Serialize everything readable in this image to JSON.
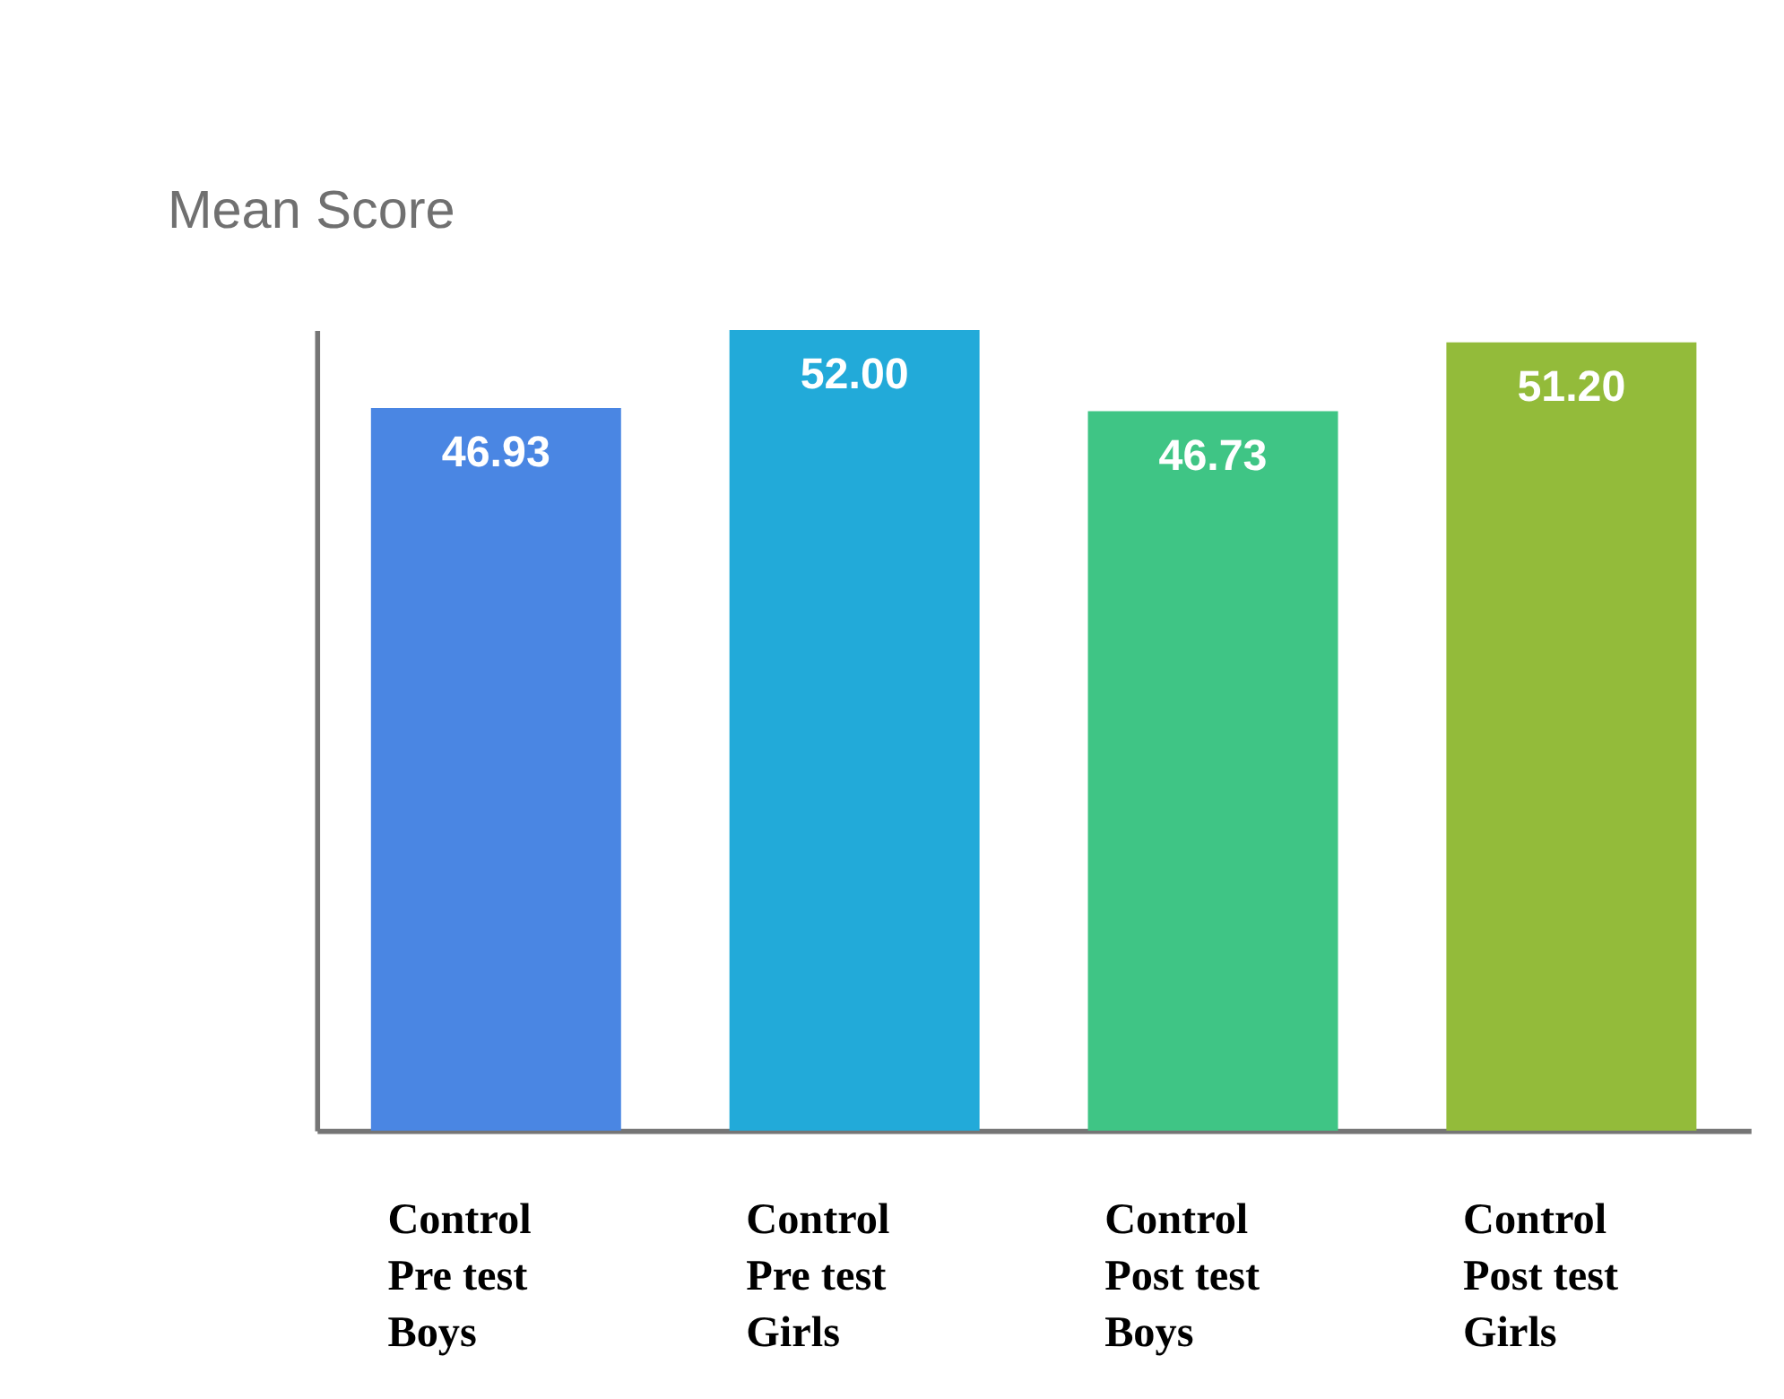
{
  "chart_data": {
    "type": "bar",
    "ylabel": "Mean Score",
    "categories": [
      "Control Pre test Boys",
      "Control Pre test Girls",
      "Control Post test Boys",
      "Control Post test Girls"
    ],
    "values": [
      46.93,
      52.0,
      46.73,
      51.2
    ],
    "value_labels": [
      "46.93",
      "52.00",
      "46.73",
      "51.20"
    ],
    "colors": [
      "#4a86e3",
      "#22aad9",
      "#3fc585",
      "#93bb3a"
    ],
    "grid": false,
    "tick_labels": "x"
  }
}
